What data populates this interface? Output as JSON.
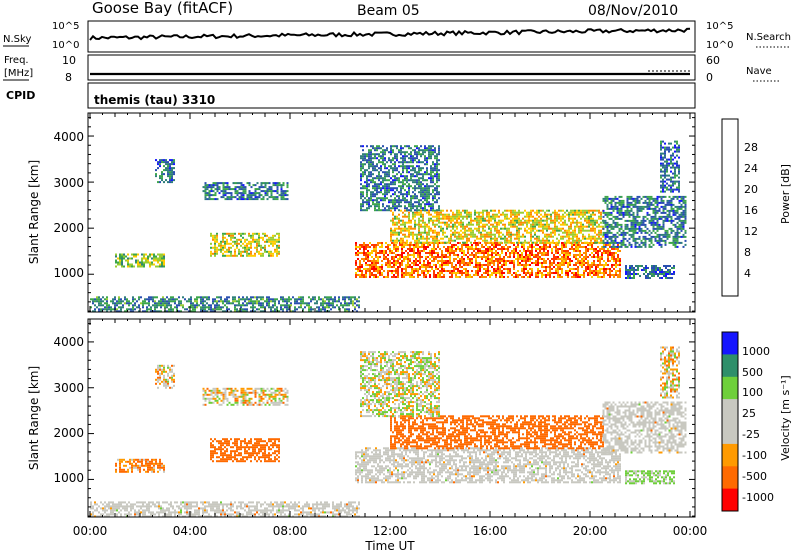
{
  "header": {
    "station": "Goose Bay (fitACF)",
    "beam": "Beam 05",
    "date": "08/Nov/2010"
  },
  "noise_panel": {
    "left_label": "N.Sky",
    "left_ticks": [
      "10^5",
      "10^0"
    ],
    "right_label": "N.Search",
    "right_ticks": [
      "10^5",
      "10^0"
    ]
  },
  "freq_panel": {
    "left_label_line1": "Freq.",
    "left_label_line2": "[MHz]",
    "left_ticks": [
      "10",
      "8"
    ],
    "right_label": "Nave",
    "right_ticks": [
      "60",
      "0"
    ]
  },
  "cpid_panel": {
    "label": "CPID",
    "text": "themis (tau) 3310"
  },
  "power_panel": {
    "ylabel": "Slant Range [km]",
    "yticks": [
      "4000",
      "3000",
      "2000",
      "1000"
    ],
    "colorbar_label": "Power [dB]",
    "colorbar_ticks": [
      "28",
      "24",
      "20",
      "16",
      "12",
      "8",
      "4"
    ]
  },
  "velocity_panel": {
    "ylabel": "Slant Range [km]",
    "yticks": [
      "4000",
      "3000",
      "2000",
      "1000"
    ],
    "colorbar_label": "Velocity [m s⁻¹]",
    "colorbar_ticks": [
      "1000",
      "500",
      "100",
      "25",
      "-25",
      "-100",
      "-500",
      "-1000"
    ]
  },
  "xaxis": {
    "ticks": [
      "00:00",
      "04:00",
      "08:00",
      "12:00",
      "16:00",
      "20:00",
      "00:00"
    ],
    "label": "Time UT"
  },
  "colors": {
    "power_scale": [
      "#1515ff",
      "#2a4fb0",
      "#2f7f7a",
      "#3ca64a",
      "#9acd32",
      "#ffcc00",
      "#ff8c00",
      "#ff3b00",
      "#ff0000"
    ],
    "velocity_scale": [
      "#ff0000",
      "#ff6a00",
      "#ff9a00",
      "#c8c8c0",
      "#c8c8c0",
      "#6ecf3a",
      "#2f8f6a",
      "#1515ff"
    ],
    "ground_scatter": "#c8c8c0"
  },
  "chart_data": {
    "type": "heatmap",
    "x_range_hours": [
      0,
      24
    ],
    "y_range_km": [
      180,
      4500
    ],
    "power_ylim": [
      0,
      30
    ],
    "velocity_ylim": [
      -1000,
      1000
    ],
    "scatter_regions": [
      {
        "t": [
          0.0,
          10.8
        ],
        "r": [
          200,
          520
        ],
        "power": 8,
        "velocity": 0,
        "ground": true
      },
      {
        "t": [
          1.0,
          3.0
        ],
        "r": [
          1150,
          1450
        ],
        "power": 14,
        "velocity": -120
      },
      {
        "t": [
          4.8,
          7.6
        ],
        "r": [
          1400,
          1900
        ],
        "power": 16,
        "velocity": -300
      },
      {
        "t": [
          2.6,
          3.4
        ],
        "r": [
          3000,
          3500
        ],
        "power": 6,
        "velocity": 0
      },
      {
        "t": [
          4.5,
          7.9
        ],
        "r": [
          2650,
          3000
        ],
        "power": 7,
        "velocity": 0
      },
      {
        "t": [
          10.6,
          21.2
        ],
        "r": [
          950,
          1700
        ],
        "power": 24,
        "velocity": 0,
        "ground": true
      },
      {
        "t": [
          12.0,
          20.5
        ],
        "r": [
          1700,
          2400
        ],
        "power": 18,
        "velocity": -250
      },
      {
        "t": [
          10.8,
          14.0
        ],
        "r": [
          2400,
          3800
        ],
        "power": 7,
        "velocity": 50
      },
      {
        "t": [
          20.5,
          23.8
        ],
        "r": [
          1600,
          2700
        ],
        "power": 7,
        "velocity": 0,
        "ground": true
      },
      {
        "t": [
          21.4,
          23.4
        ],
        "r": [
          900,
          1200
        ],
        "power": 6,
        "velocity": 150
      },
      {
        "t": [
          22.8,
          23.6
        ],
        "r": [
          2800,
          3900
        ],
        "power": 6,
        "velocity": 0
      }
    ]
  }
}
